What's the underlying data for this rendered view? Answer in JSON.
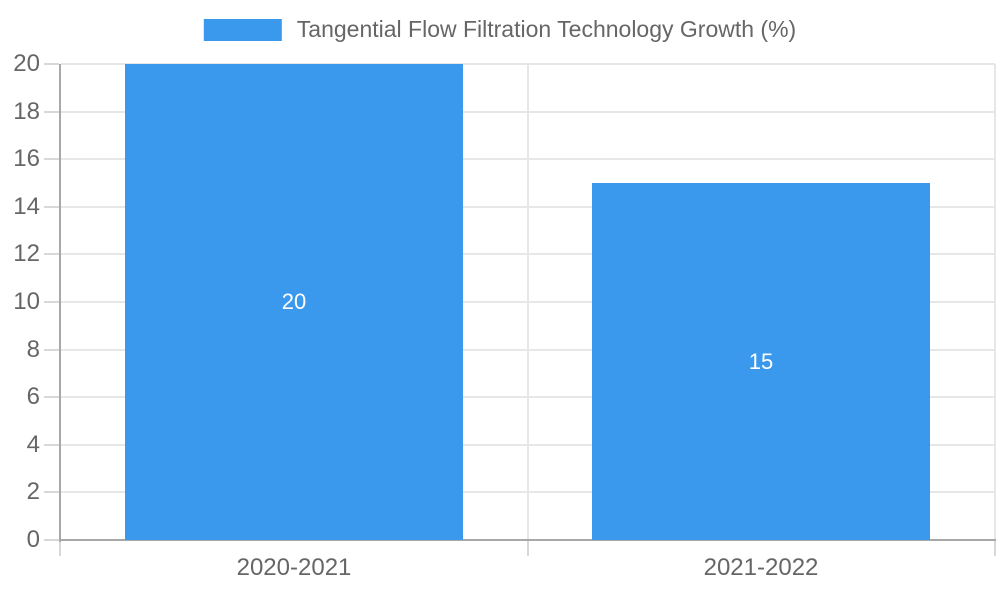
{
  "chart_data": {
    "type": "bar",
    "title": "Tangential Flow Filtration Technology Growth (%)",
    "categories": [
      "2020-2021",
      "2021-2022"
    ],
    "values": [
      20,
      15
    ],
    "bar_value_labels": [
      "20",
      "15"
    ],
    "ylim": [
      0,
      20
    ],
    "ytick_step": 2,
    "yticks": [
      0,
      2,
      4,
      6,
      8,
      10,
      12,
      14,
      16,
      18,
      20
    ],
    "legend": {
      "position": "top",
      "label": "Tangential Flow Filtration Technology Growth (%)"
    },
    "grid": true,
    "colors": {
      "bar": "#3A99EC",
      "bar_value_text": "#ffffff",
      "axis_line": "#a8a8a8",
      "gridline": "#e7e7e7",
      "tick_mark": "#d8d8d8",
      "tick_text": "#666666",
      "legend_text": "#666666",
      "background": "#ffffff"
    }
  }
}
